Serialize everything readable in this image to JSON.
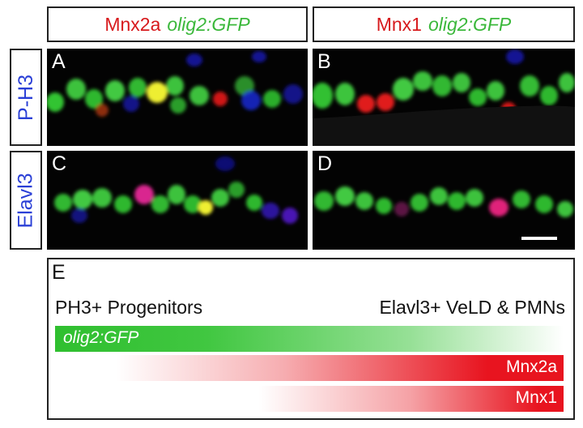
{
  "columns": [
    {
      "marker": "Mnx2a",
      "reporter": "olig2:GFP"
    },
    {
      "marker": "Mnx1",
      "reporter": "olig2:GFP"
    }
  ],
  "rows": [
    {
      "label": "P-H3"
    },
    {
      "label": "Elavl3"
    }
  ],
  "panels": {
    "A": "A",
    "B": "B",
    "C": "C",
    "D": "D"
  },
  "schema": {
    "letter": "E",
    "left_label": "PH3+ Progenitors",
    "right_label": "Elavl3+ VeLD & PMNs",
    "bars": {
      "green": "olig2:GFP",
      "red1": "Mnx2a",
      "red2": "Mnx1"
    }
  },
  "colors": {
    "green": "#41c741",
    "red": "#e8141f",
    "blue": "#2a3fd6",
    "yellow": "#f2f23a",
    "magenta": "#d9268f"
  }
}
